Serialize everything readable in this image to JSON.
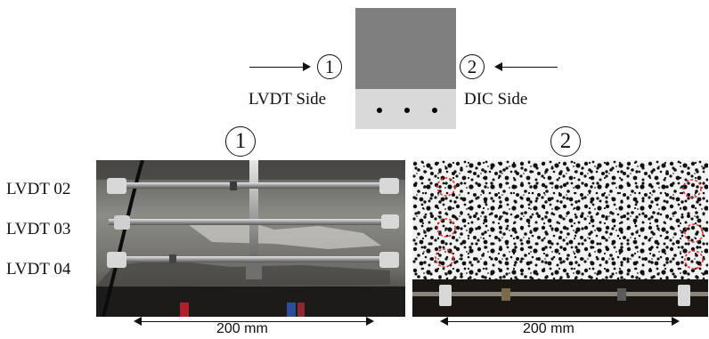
{
  "schematic": {
    "left_marker": "1",
    "right_marker": "2",
    "left_label": "LVDT Side",
    "right_label": "DIC Side",
    "colors": {
      "top_block": "#7f7f7f",
      "bottom_block": "#d9d9d9",
      "dots": "#000000"
    }
  },
  "photos": {
    "left_marker": "1",
    "right_marker": "2",
    "lvdt_labels": [
      "LVDT 02",
      "LVDT 03",
      "LVDT 04"
    ],
    "left_dimension": "200 mm",
    "right_dimension": "200 mm",
    "colors": {
      "dic_markers": "#e03030"
    }
  }
}
